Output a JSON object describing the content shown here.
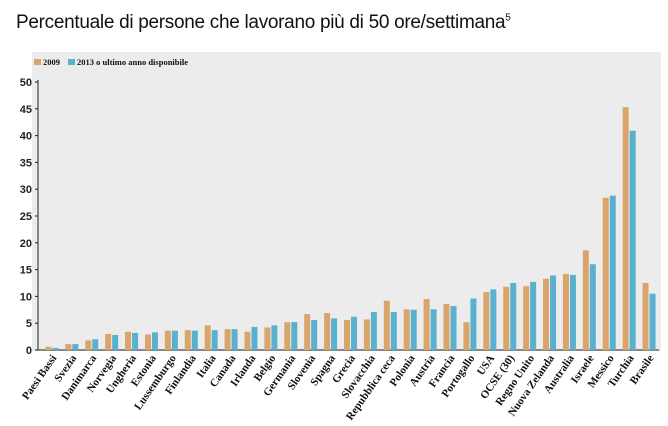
{
  "title": "Percentuale di persone che lavorano più di 50 ore/settimana",
  "title_note": "5",
  "colors": {
    "series_2009": "#d9a56b",
    "series_2013": "#5ab0cf",
    "panel": "#ececec",
    "axis": "#222222"
  },
  "chart_data": {
    "type": "bar",
    "title": "Percentuale di persone che lavorano più di 50 ore/settimana",
    "xlabel": "",
    "ylabel": "",
    "ylim": [
      0,
      50
    ],
    "yticks": [
      0,
      5,
      10,
      15,
      20,
      25,
      30,
      35,
      40,
      45,
      50
    ],
    "grid": false,
    "legend_position": "top-left",
    "categories": [
      "Paesi Bassi",
      "Svezia",
      "Danimarca",
      "Norvegia",
      "Ungheria",
      "Estonia",
      "Lussemburgo",
      "Finlandia",
      "Italia",
      "Canada",
      "Irlanda",
      "Belgio",
      "Germania",
      "Slovenia",
      "Spagna",
      "Grecia",
      "Slovacchia",
      "Repubblica ceca",
      "Polonia",
      "Austria",
      "Francia",
      "Portogallo",
      "USA",
      "OCSE (30)",
      "Regno Unito",
      "Nuova Zelanda",
      "Australia",
      "Israele",
      "Messico",
      "Turchia",
      "Brasile"
    ],
    "series": [
      {
        "name": "2009",
        "values": [
          0.6,
          1.1,
          1.8,
          3.0,
          3.4,
          2.9,
          3.6,
          3.7,
          4.6,
          3.9,
          3.4,
          4.2,
          5.2,
          6.7,
          6.9,
          5.6,
          5.7,
          9.2,
          7.6,
          9.5,
          8.6,
          5.2,
          10.8,
          11.8,
          11.9,
          13.3,
          14.2,
          18.6,
          28.4,
          45.3,
          12.5
        ]
      },
      {
        "name": "2013 o ultimo anno disponibile",
        "values": [
          0.4,
          1.1,
          2.0,
          2.8,
          3.2,
          3.3,
          3.6,
          3.6,
          3.7,
          3.9,
          4.3,
          4.6,
          5.2,
          5.6,
          5.9,
          6.2,
          7.1,
          7.1,
          7.5,
          7.6,
          8.2,
          9.6,
          11.3,
          12.5,
          12.7,
          13.9,
          14.0,
          16.0,
          28.8,
          40.9,
          10.5
        ]
      }
    ]
  }
}
